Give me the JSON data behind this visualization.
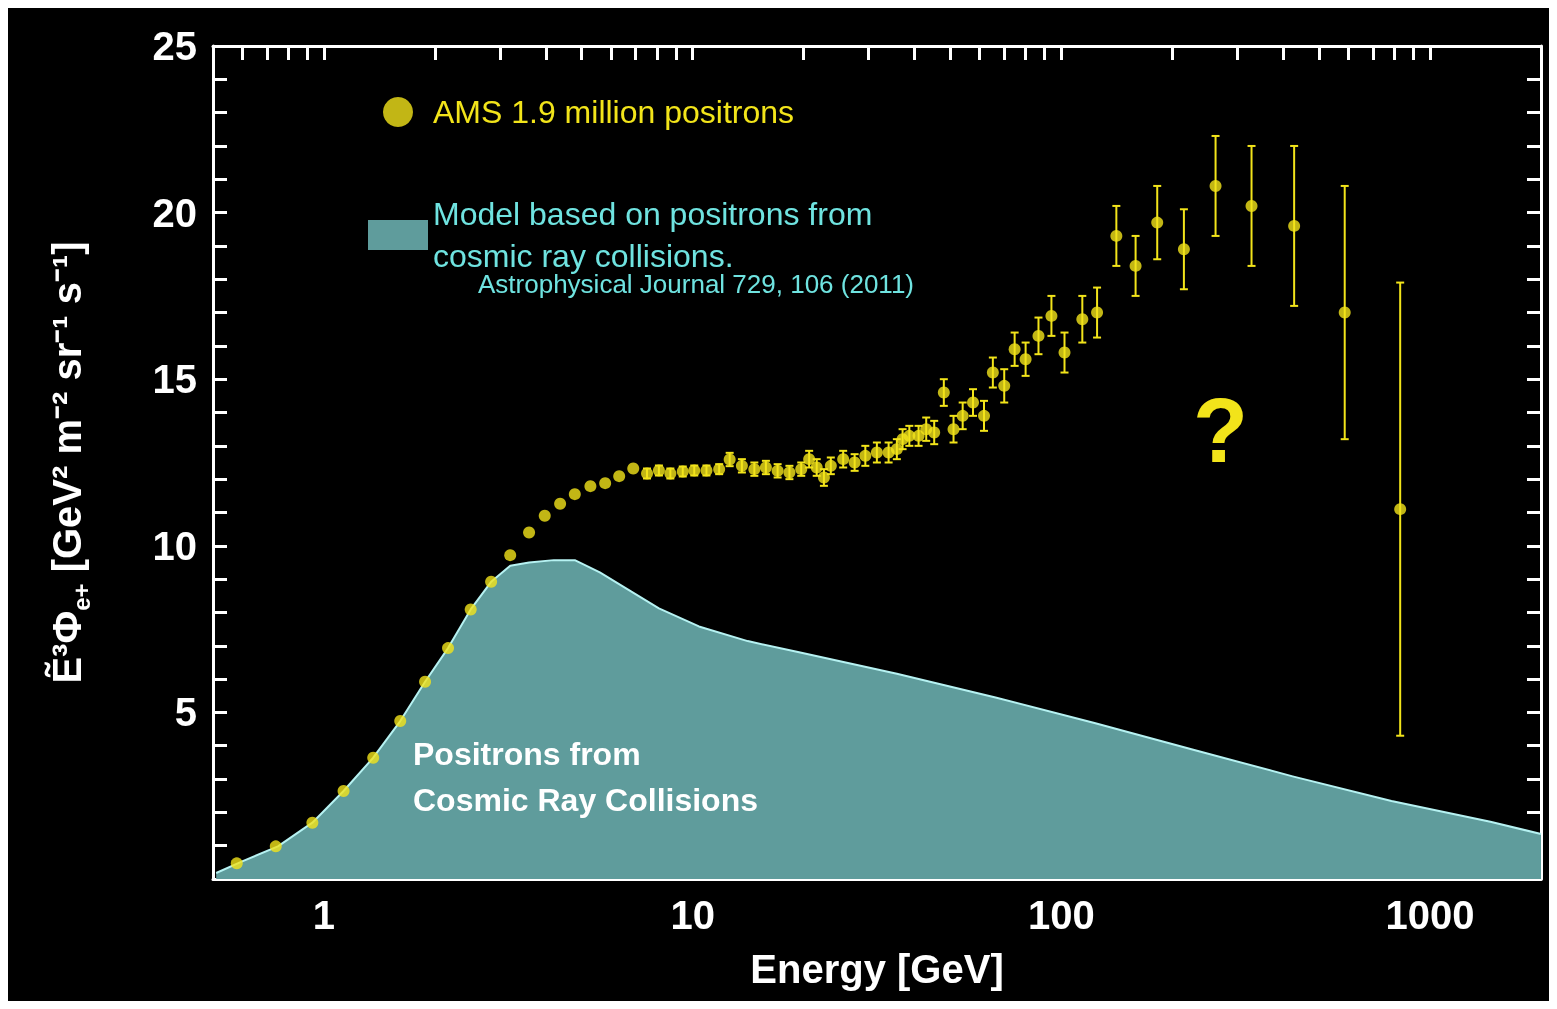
{
  "chart_data": {
    "type": "scatter",
    "xlabel": "Energy [GeV]",
    "ylabel": "Ẽ³Φ$_{e+}$ [GeV² m⁻² sr⁻¹ s⁻¹]",
    "log": "x",
    "xlim": [
      0.5,
      2000
    ],
    "ylim": [
      0,
      25
    ],
    "xticks": [
      {
        "value": 0.6,
        "label": null
      },
      {
        "value": 0.7,
        "label": null
      },
      {
        "value": 0.8,
        "label": null
      },
      {
        "value": 0.9,
        "label": null
      },
      1,
      {
        "value": 2,
        "label": null
      },
      {
        "value": 3,
        "label": null
      },
      {
        "value": 4,
        "label": null
      },
      {
        "value": 5,
        "label": null
      },
      {
        "value": 6,
        "label": null
      },
      {
        "value": 7,
        "label": null
      },
      {
        "value": 8,
        "label": null
      },
      {
        "value": 9,
        "label": null
      },
      10,
      {
        "value": 20,
        "label": null
      },
      {
        "value": 30,
        "label": null
      },
      {
        "value": 40,
        "label": null
      },
      {
        "value": 50,
        "label": null
      },
      {
        "value": 60,
        "label": null
      },
      {
        "value": 70,
        "label": null
      },
      {
        "value": 80,
        "label": null
      },
      {
        "value": 90,
        "label": null
      },
      100,
      {
        "value": 200,
        "label": null
      },
      {
        "value": 300,
        "label": null
      },
      {
        "value": 400,
        "label": null
      },
      {
        "value": 500,
        "label": null
      },
      {
        "value": 600,
        "label": null
      },
      {
        "value": 700,
        "label": null
      },
      {
        "value": 800,
        "label": null
      },
      {
        "value": 900,
        "label": null
      },
      1000,
      {
        "value": 2000,
        "label": null
      }
    ],
    "yticks": [
      {
        "value": 1,
        "label": null
      },
      {
        "value": 2,
        "label": null
      },
      {
        "value": 3,
        "label": null
      },
      {
        "value": 4,
        "label": null
      },
      5,
      {
        "value": 6,
        "label": null
      },
      {
        "value": 7,
        "label": null
      },
      {
        "value": 8,
        "label": null
      },
      {
        "value": 9,
        "label": null
      },
      10,
      {
        "value": 11,
        "label": null
      },
      {
        "value": 12,
        "label": null
      },
      {
        "value": 13,
        "label": null
      },
      {
        "value": 14,
        "label": null
      },
      15,
      {
        "value": 16,
        "label": null
      },
      {
        "value": 17,
        "label": null
      },
      {
        "value": 18,
        "label": null
      },
      {
        "value": 19,
        "label": null
      },
      20,
      {
        "value": 21,
        "label": null
      },
      {
        "value": 22,
        "label": null
      },
      {
        "value": 23,
        "label": null
      },
      {
        "value": 24,
        "label": null
      },
      25
    ],
    "grid": false,
    "legend": "top left",
    "series": [
      {
        "name": "AMS 1.9 million positrons",
        "color": "#f2e41a",
        "marker": "circle",
        "x": [
          0.58,
          0.74,
          0.93,
          1.13,
          1.36,
          1.61,
          1.88,
          2.17,
          2.5,
          2.84,
          3.2,
          3.6,
          3.97,
          4.37,
          4.79,
          5.28,
          5.79,
          6.32,
          6.9,
          7.52,
          8.1,
          8.7,
          9.4,
          10.1,
          10.9,
          11.8,
          12.6,
          13.6,
          14.7,
          15.8,
          17.0,
          18.3,
          19.7,
          20.7,
          21.7,
          22.7,
          23.7,
          25.6,
          27.5,
          29.4,
          31.6,
          34.0,
          35.8,
          37.1,
          38.7,
          41,
          43,
          45.2,
          48,
          51,
          54,
          57.6,
          61.7,
          65.2,
          70,
          74.7,
          80,
          86.7,
          94,
          102,
          114,
          125,
          141,
          159,
          182,
          215,
          262,
          328,
          428,
          587,
          830
        ],
        "values": [
          0.47,
          0.98,
          1.69,
          2.64,
          3.64,
          4.74,
          5.92,
          6.93,
          8.09,
          8.92,
          9.72,
          10.4,
          10.9,
          11.26,
          11.55,
          11.79,
          11.88,
          12.09,
          12.32,
          12.17,
          12.26,
          12.17,
          12.23,
          12.26,
          12.26,
          12.3,
          12.59,
          12.4,
          12.3,
          12.35,
          12.25,
          12.2,
          12.3,
          12.6,
          12.35,
          12.05,
          12.4,
          12.6,
          12.5,
          12.7,
          12.8,
          12.8,
          12.9,
          13.2,
          13.3,
          13.3,
          13.5,
          13.4,
          14.6,
          13.5,
          13.9,
          14.3,
          13.9,
          15.2,
          14.8,
          15.9,
          15.6,
          16.3,
          16.9,
          15.8,
          16.8,
          17.0,
          19.3,
          18.4,
          19.7,
          18.9,
          20.8,
          20.2,
          19.6,
          17.0,
          11.1
        ],
        "errors": [
          null,
          null,
          null,
          null,
          null,
          null,
          null,
          null,
          null,
          null,
          null,
          null,
          null,
          null,
          null,
          null,
          null,
          null,
          null,
          0.15,
          0.15,
          0.15,
          0.15,
          0.15,
          0.15,
          0.15,
          0.2,
          0.2,
          0.2,
          0.2,
          0.2,
          0.2,
          0.2,
          0.25,
          0.25,
          0.25,
          0.25,
          0.25,
          0.25,
          0.3,
          0.3,
          0.3,
          0.3,
          0.3,
          0.3,
          0.3,
          0.35,
          0.35,
          0.4,
          0.4,
          0.4,
          0.4,
          0.45,
          0.45,
          0.5,
          0.5,
          0.5,
          0.55,
          0.6,
          0.6,
          0.7,
          0.75,
          0.9,
          0.9,
          1.1,
          1.2,
          1.5,
          1.8,
          2.4,
          3.8,
          6.8
        ]
      },
      {
        "name": "Model based on positrons from cosmic ray collisions.",
        "type": "area",
        "color": "#5f9c9c",
        "x": [
          0.51,
          0.6,
          0.75,
          0.93,
          1.13,
          1.36,
          1.61,
          1.88,
          2.17,
          2.5,
          2.84,
          3.2,
          3.6,
          4.2,
          4.79,
          5.6,
          6.7,
          8.1,
          10.4,
          14.1,
          19.3,
          35.8,
          66.3,
          123,
          228,
          424,
          786,
          1458,
          2000
        ],
        "values": [
          0.18,
          0.53,
          0.98,
          1.69,
          2.64,
          3.64,
          4.74,
          5.92,
          6.93,
          8.09,
          8.92,
          9.4,
          9.5,
          9.57,
          9.57,
          9.2,
          8.68,
          8.12,
          7.58,
          7.14,
          6.81,
          6.16,
          5.45,
          4.68,
          3.88,
          3.08,
          2.34,
          1.72,
          1.35
        ]
      }
    ],
    "annotations": [
      "Astrophysical Journal 729, 106 (2011)",
      "Positrons from\nCosmic Ray Collisions",
      "?"
    ]
  }
}
